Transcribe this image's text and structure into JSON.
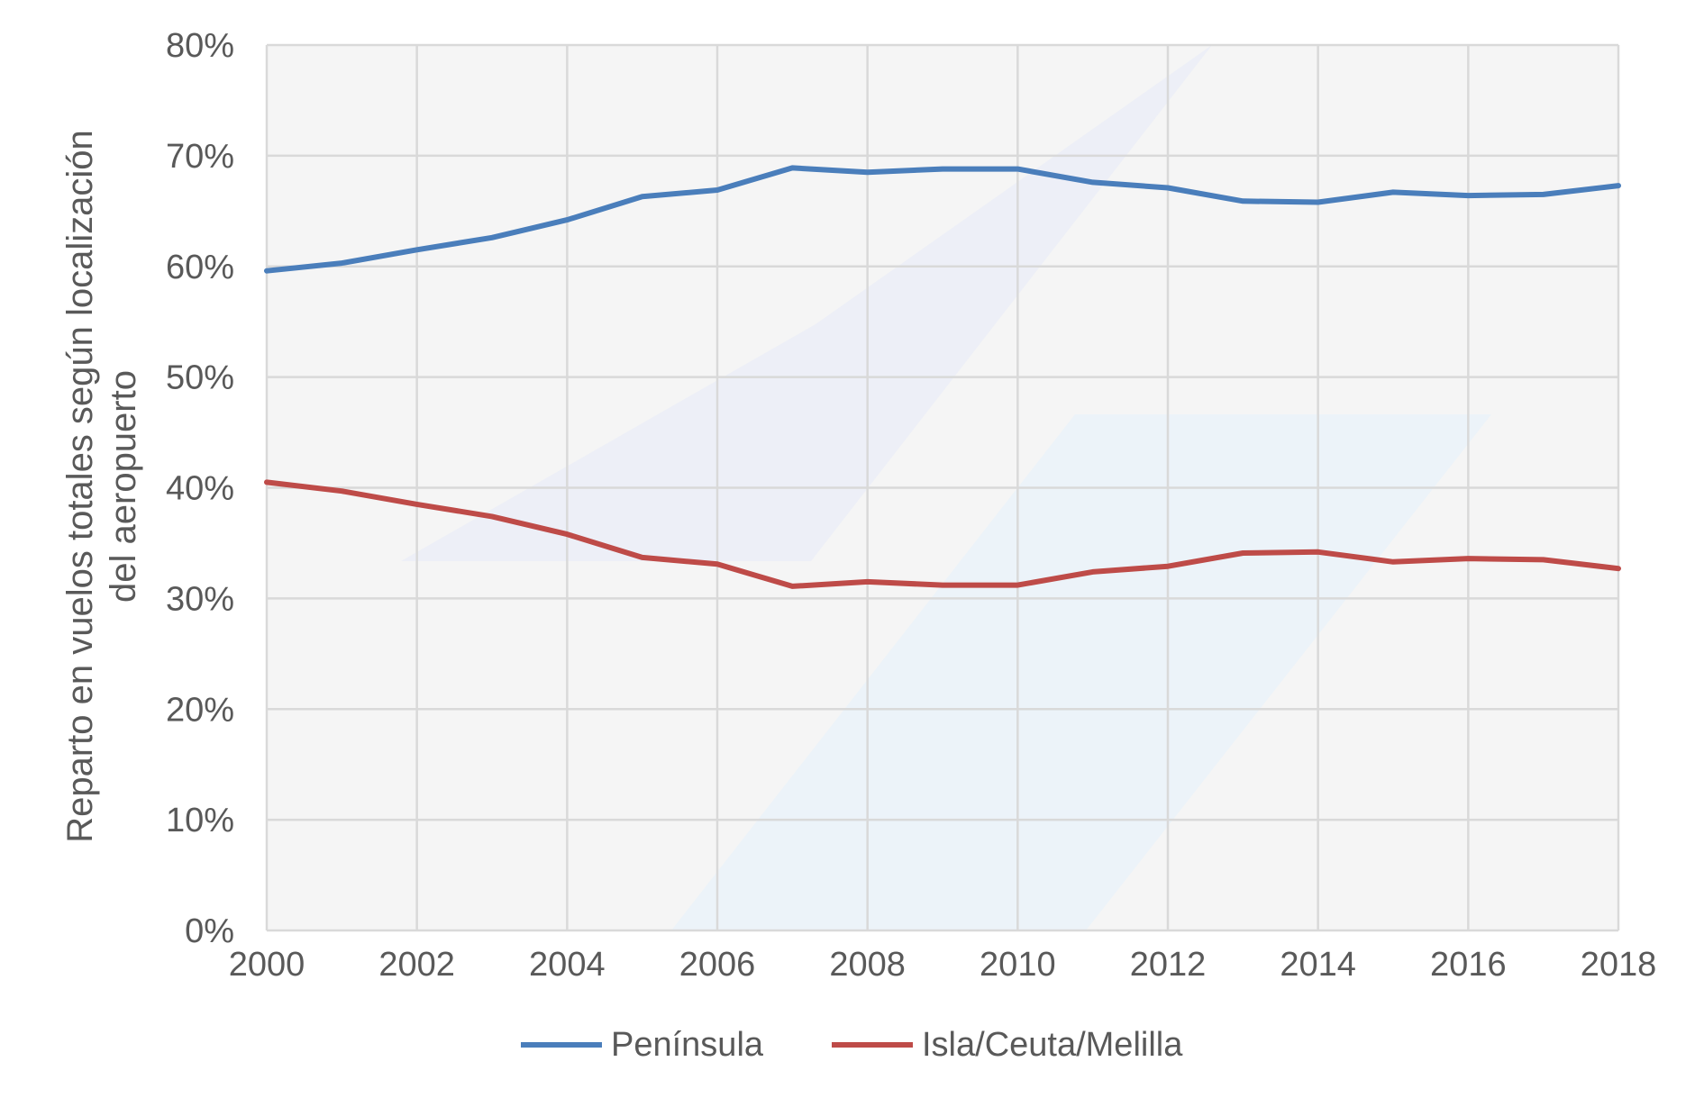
{
  "chart_data": {
    "type": "line",
    "title": "",
    "xlabel": "",
    "ylabel": [
      "Reparto en vuelos totales según localización",
      "del aeropuerto"
    ],
    "x": [
      2000,
      2001,
      2002,
      2003,
      2004,
      2005,
      2006,
      2007,
      2008,
      2009,
      2010,
      2011,
      2012,
      2013,
      2014,
      2015,
      2016,
      2017,
      2018
    ],
    "xlim": [
      2000,
      2018
    ],
    "ylim": [
      0,
      80
    ],
    "y_unit": "%",
    "x_ticks": [
      "2000",
      "2002",
      "2004",
      "2006",
      "2008",
      "2010",
      "2012",
      "2014",
      "2016",
      "2018"
    ],
    "y_ticks": [
      "0%",
      "10%",
      "20%",
      "30%",
      "40%",
      "50%",
      "60%",
      "70%",
      "80%"
    ],
    "grid": true,
    "legend_position": "bottom",
    "series": [
      {
        "name": "Península",
        "color": "#4a7ebb",
        "values": [
          59.6,
          60.3,
          61.5,
          62.6,
          64.2,
          66.3,
          66.9,
          68.9,
          68.5,
          68.8,
          68.8,
          67.6,
          67.1,
          65.9,
          65.8,
          66.7,
          66.4,
          66.5,
          67.3
        ]
      },
      {
        "name": "Isla/Ceuta/Melilla",
        "color": "#be4b48",
        "values": [
          40.5,
          39.7,
          38.5,
          37.4,
          35.8,
          33.7,
          33.1,
          31.1,
          31.5,
          31.2,
          31.2,
          32.4,
          32.9,
          34.1,
          34.2,
          33.3,
          33.6,
          33.5,
          32.7
        ]
      }
    ],
    "colors": {
      "plot_background": "#f5f5f5",
      "grid": "#d9d9d9",
      "text": "#595959"
    }
  }
}
